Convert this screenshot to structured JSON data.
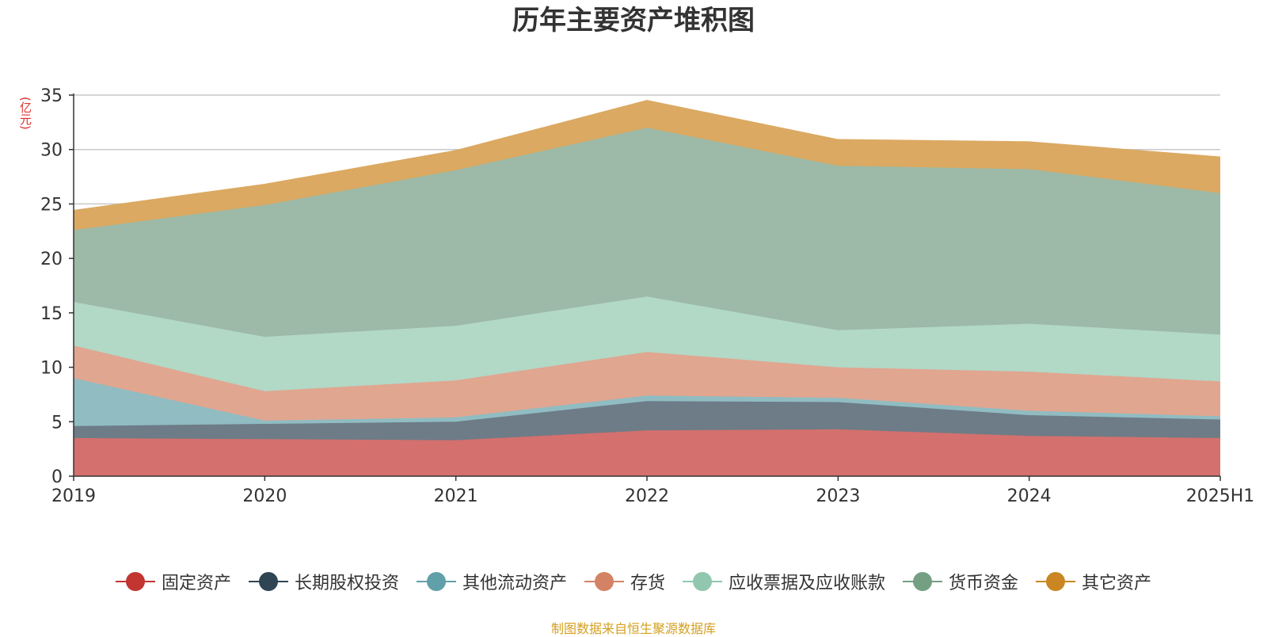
{
  "chart_data": {
    "type": "area",
    "stacked": true,
    "title": "历年主要资产堆积图",
    "unit_label": "(亿元)",
    "categories": [
      "2019",
      "2020",
      "2021",
      "2022",
      "2023",
      "2024",
      "2025H1"
    ],
    "ylim": [
      0,
      35
    ],
    "yticks": [
      0,
      5,
      10,
      15,
      20,
      25,
      30,
      35
    ],
    "grid": true,
    "legend_position": "bottom",
    "series": [
      {
        "name": "固定资产",
        "color": "#c23531",
        "area_color": "#d4706d",
        "values": [
          3.5,
          3.4,
          3.3,
          4.2,
          4.3,
          3.7,
          3.5
        ]
      },
      {
        "name": "长期股权投资",
        "color": "#2f4554",
        "area_color": "#6e7c87",
        "values": [
          1.1,
          1.4,
          1.7,
          2.7,
          2.5,
          1.9,
          1.7
        ]
      },
      {
        "name": "其他流动资产",
        "color": "#61a0a8",
        "area_color": "#90bcc2",
        "values": [
          4.4,
          0.3,
          0.4,
          0.5,
          0.4,
          0.4,
          0.3
        ]
      },
      {
        "name": "存货",
        "color": "#d48265",
        "area_color": "#e0a690",
        "values": [
          3.0,
          2.7,
          3.4,
          4.0,
          2.8,
          3.6,
          3.2
        ]
      },
      {
        "name": "应收票据及应收账款",
        "color": "#91c7ae",
        "area_color": "#b2d8c6",
        "values": [
          4.0,
          5.0,
          5.0,
          5.1,
          3.4,
          4.4,
          4.3
        ]
      },
      {
        "name": "货币资金",
        "color": "#749f83",
        "area_color": "#9db9a7",
        "values": [
          6.6,
          12.1,
          14.3,
          15.5,
          15.1,
          14.2,
          13.0
        ]
      },
      {
        "name": "其它资产",
        "color": "#ca8622",
        "area_color": "#dba962",
        "values": [
          1.8,
          1.9,
          1.8,
          2.5,
          2.4,
          2.5,
          3.3
        ]
      }
    ]
  },
  "footer": {
    "source": "制图数据来自恒生聚源数据库"
  }
}
